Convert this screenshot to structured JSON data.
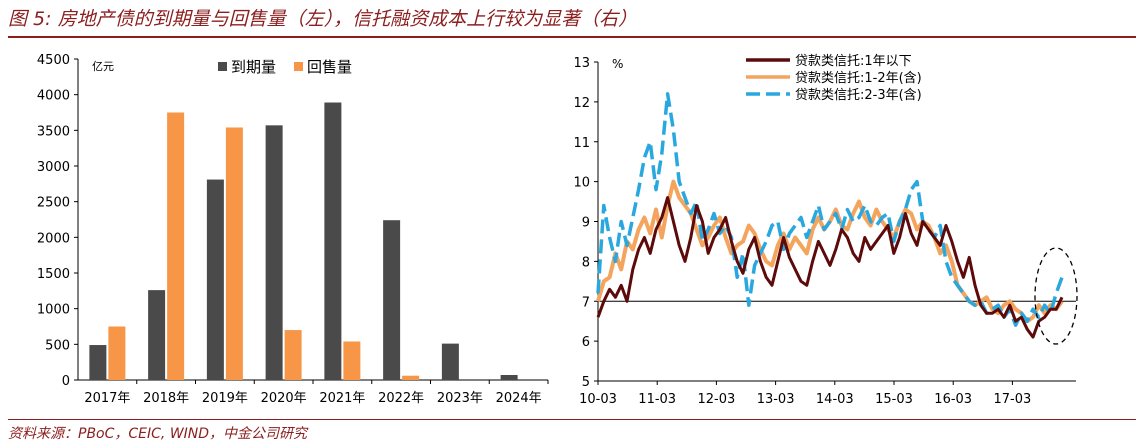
{
  "title": "图 5: 房地产债的到期量与回售量（左），信托融资成本上行较为显著（右）",
  "source": "资料来源：PBoC，CEIC, WIND，中金公司研究",
  "colors": {
    "title": "#8b1e1e",
    "bar_maturity": "#4a4a4a",
    "bar_putback": "#f79646",
    "line1": "#5c0a0a",
    "line2": "#f5a45d",
    "line3": "#29a8e0"
  },
  "chart_data": [
    {
      "type": "bar",
      "unit": "亿元",
      "categories": [
        "2017年",
        "2018年",
        "2019年",
        "2020年",
        "2021年",
        "2022年",
        "2023年",
        "2024年"
      ],
      "series": [
        {
          "name": "到期量",
          "values": [
            490,
            1260,
            2810,
            3570,
            3890,
            2240,
            510,
            70
          ]
        },
        {
          "name": "回售量",
          "values": [
            750,
            3750,
            3540,
            700,
            540,
            60,
            null,
            null
          ]
        }
      ],
      "ylim": [
        0,
        4500
      ],
      "yticks": [
        "0",
        "500",
        "1000",
        "1500",
        "2000",
        "2500",
        "3000",
        "3500",
        "4000",
        "4500"
      ],
      "legend": "top"
    },
    {
      "type": "line",
      "unit": "%",
      "ylim": [
        5,
        13
      ],
      "yticks": [
        "5",
        "6",
        "7",
        "8",
        "9",
        "10",
        "11",
        "12",
        "13"
      ],
      "xticks": [
        "10-03",
        "11-03",
        "12-03",
        "13-03",
        "14-03",
        "15-03",
        "16-03",
        "17-03"
      ],
      "reference_line": 7,
      "legend": "top-right",
      "annotation": "dashed ellipse around latest readings",
      "series": [
        {
          "name": "贷款类信托:1年以下",
          "values": [
            6.6,
            7.0,
            7.3,
            7.1,
            7.4,
            7.0,
            7.8,
            8.3,
            8.6,
            8.2,
            8.8,
            9.1,
            9.6,
            9.0,
            8.4,
            8.0,
            8.6,
            9.4,
            9.0,
            8.2,
            8.6,
            8.8,
            9.1,
            8.5,
            8.0,
            7.7,
            8.3,
            8.6,
            8.0,
            7.6,
            7.4,
            8.0,
            8.6,
            8.1,
            7.8,
            7.5,
            7.4,
            8.0,
            8.5,
            8.2,
            7.9,
            8.3,
            8.8,
            8.6,
            8.2,
            8.0,
            8.6,
            8.3,
            8.5,
            8.7,
            8.9,
            8.2,
            8.6,
            9.2,
            8.7,
            8.4,
            9.0,
            8.8,
            8.6,
            8.4,
            8.9,
            8.5,
            8.0,
            7.6,
            8.1,
            7.4,
            6.9,
            6.7,
            6.7,
            6.8,
            6.6,
            6.9,
            6.5,
            6.6,
            6.3,
            6.1,
            6.5,
            6.6,
            6.8,
            6.8,
            7.1
          ]
        },
        {
          "name": "贷款类信托:1-2年(含)",
          "values": [
            7.0,
            7.5,
            7.6,
            8.2,
            7.8,
            8.5,
            8.3,
            8.8,
            9.1,
            8.7,
            9.3,
            8.6,
            9.4,
            10.0,
            9.6,
            9.4,
            9.2,
            8.8,
            8.4,
            8.6,
            8.9,
            9.1,
            8.6,
            8.2,
            8.4,
            8.5,
            8.9,
            8.7,
            8.3,
            8.0,
            7.9,
            8.4,
            8.7,
            8.3,
            8.6,
            8.4,
            8.2,
            8.8,
            9.1,
            8.8,
            9.0,
            9.3,
            8.9,
            8.8,
            9.2,
            9.5,
            9.1,
            8.9,
            9.3,
            9.0,
            8.8,
            8.6,
            9.0,
            9.3,
            9.2,
            8.8,
            9.0,
            8.9,
            8.6,
            8.2,
            8.4,
            8.0,
            7.4,
            7.2,
            7.0,
            6.9,
            7.0,
            7.1,
            6.8,
            6.7,
            6.9,
            7.0,
            6.8,
            6.7,
            6.5,
            6.6,
            6.9,
            6.7,
            6.9,
            6.8,
            7.0
          ]
        },
        {
          "name": "贷款类信托:2-3年(含)",
          "values": [
            7.2,
            9.4,
            8.6,
            8.0,
            9.0,
            8.4,
            9.1,
            9.8,
            10.6,
            11.0,
            9.8,
            10.7,
            12.2,
            11.3,
            10.0,
            9.6,
            9.2,
            9.5,
            8.5,
            8.8,
            9.2,
            8.7,
            8.9,
            8.6,
            7.6,
            8.2,
            6.9,
            7.9,
            8.2,
            8.5,
            8.9,
            9.0,
            8.3,
            8.7,
            8.9,
            9.1,
            8.6,
            9.0,
            9.4,
            8.8,
            9.0,
            9.2,
            8.8,
            9.3,
            9.0,
            9.1,
            9.4,
            9.0,
            8.9,
            9.1,
            9.2,
            8.5,
            9.0,
            9.3,
            9.8,
            10.0,
            9.0,
            8.8,
            8.6,
            8.9,
            8.0,
            7.6,
            7.4,
            7.2,
            7.0,
            6.9,
            7.0,
            6.7,
            6.8,
            6.9,
            6.6,
            6.8,
            6.4,
            6.7,
            6.5,
            6.8,
            6.6,
            6.9,
            6.7,
            7.2,
            7.6
          ]
        }
      ]
    }
  ]
}
